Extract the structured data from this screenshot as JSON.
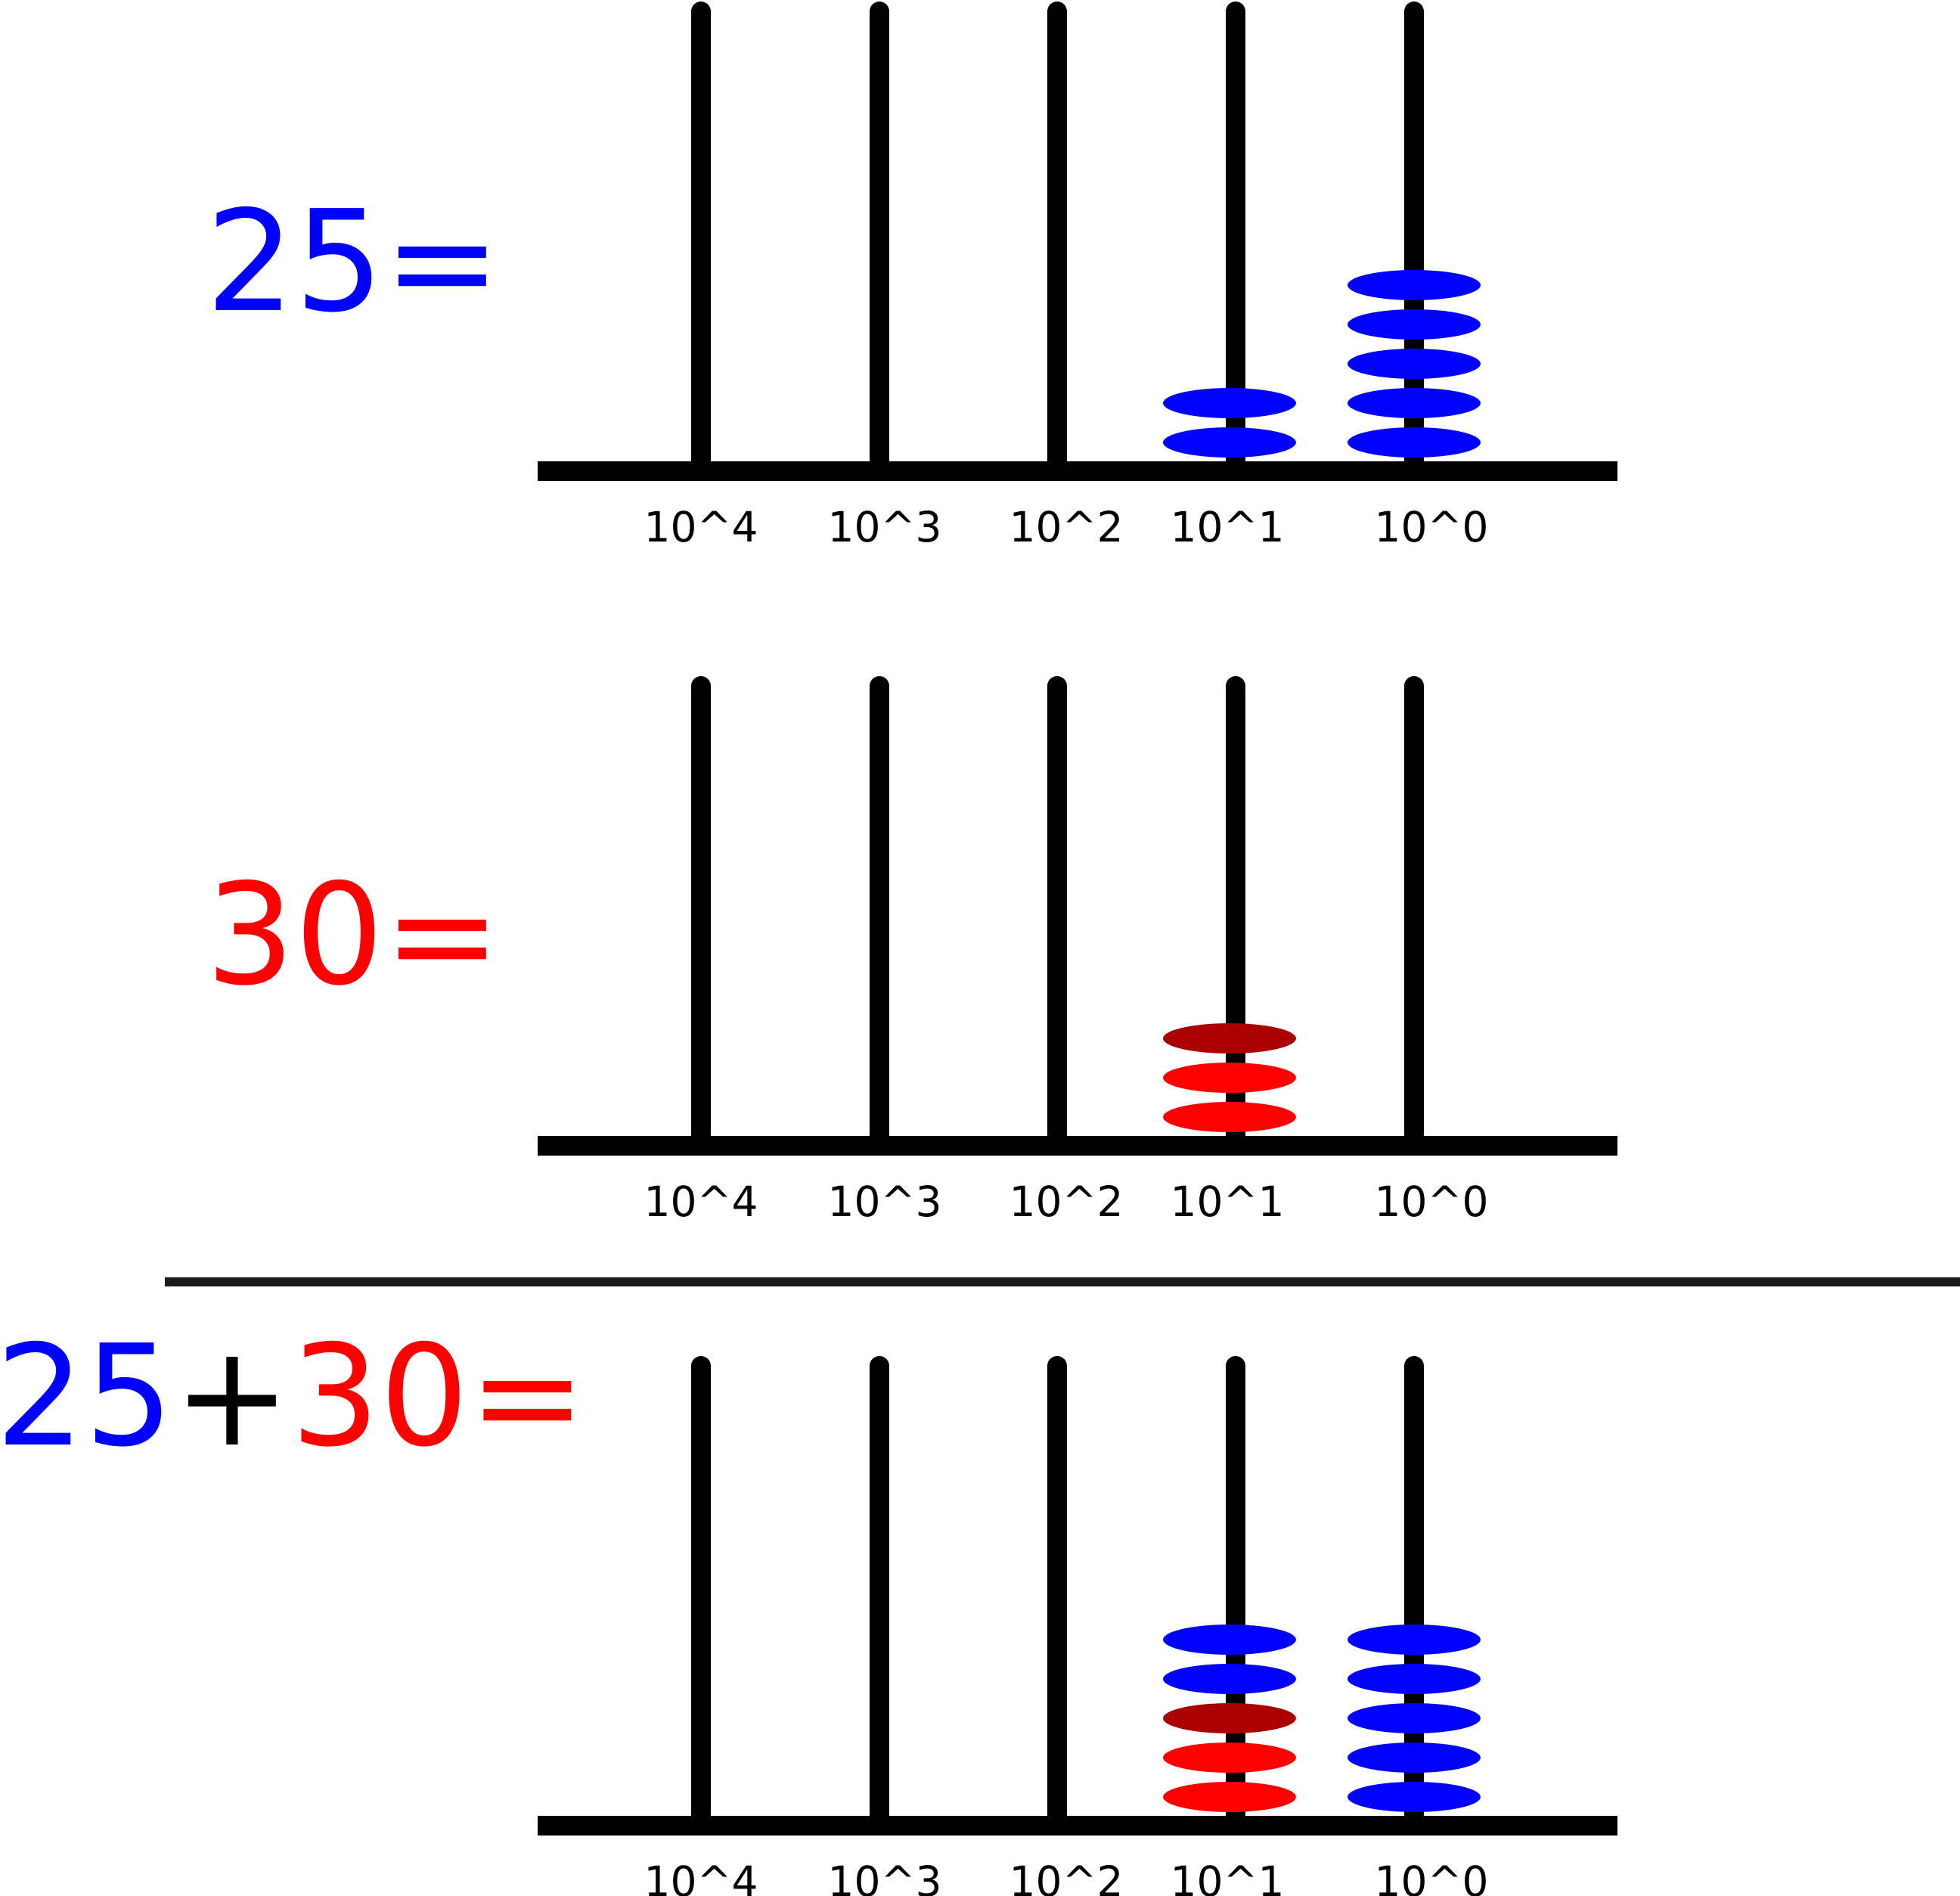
{
  "palette": {
    "blue": "#0000ff",
    "red": "#ff0000",
    "dark_red": "#aa0000",
    "rod": "#000000",
    "divider": "#1a1a1a"
  },
  "panels": [
    {
      "equation": [
        {
          "text": "25",
          "color": "blue"
        },
        {
          "text": "=",
          "color": "blue"
        }
      ],
      "place_labels": [
        "10^4",
        "10^3",
        "10^2",
        "10^1",
        "10^0"
      ],
      "beads": [
        [],
        [],
        [],
        [
          "blue",
          "blue"
        ],
        [
          "blue",
          "blue",
          "blue",
          "blue",
          "blue"
        ]
      ]
    },
    {
      "equation": [
        {
          "text": "30",
          "color": "red"
        },
        {
          "text": "=",
          "color": "red"
        }
      ],
      "place_labels": [
        "10^4",
        "10^3",
        "10^2",
        "10^1",
        "10^0"
      ],
      "beads": [
        [],
        [],
        [],
        [
          "red",
          "red",
          "dark_red"
        ],
        []
      ]
    },
    {
      "equation": [
        {
          "text": "25",
          "color": "blue"
        },
        {
          "text": "+",
          "color": "rod"
        },
        {
          "text": "30",
          "color": "red"
        },
        {
          "text": "=",
          "color": "red"
        }
      ],
      "place_labels": [
        "10^4",
        "10^3",
        "10^2",
        "10^1",
        "10^0"
      ],
      "beads": [
        [],
        [],
        [],
        [
          "red",
          "red",
          "dark_red",
          "blue",
          "blue"
        ],
        [
          "blue",
          "blue",
          "blue",
          "blue",
          "blue"
        ]
      ]
    }
  ]
}
